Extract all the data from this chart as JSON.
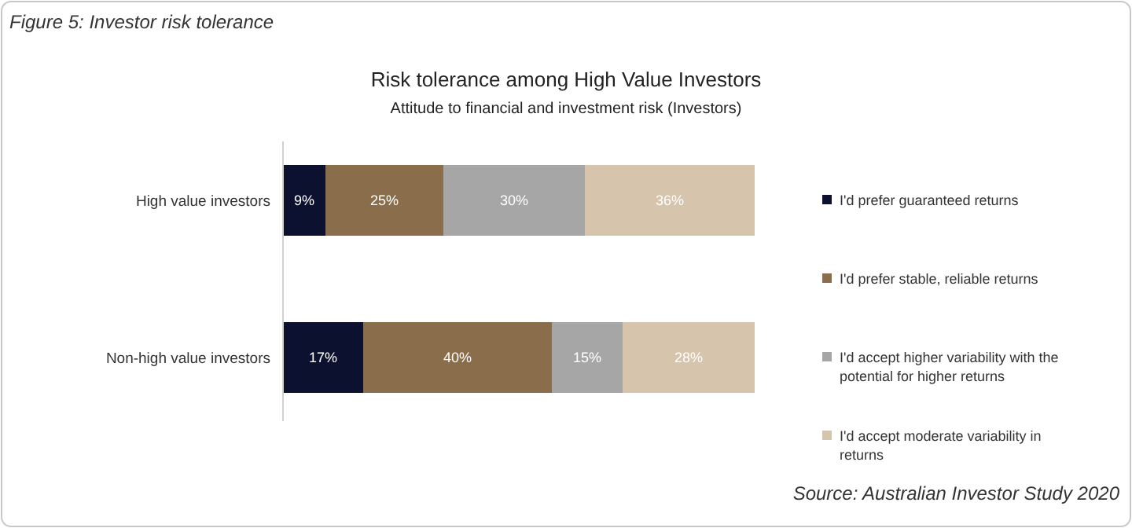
{
  "chart_data": {
    "type": "bar",
    "orientation": "horizontal",
    "stacked": true,
    "title": "Risk tolerance among High Value Investors",
    "subtitle": "Attitude to financial and investment risk (Investors)",
    "annotations": [
      "Figure 5: Investor risk tolerance",
      "Source: Australian Investor Study 2020"
    ],
    "categories": [
      "High value investors",
      "Non-high value investors"
    ],
    "series": [
      {
        "name": "I'd prefer guaranteed returns",
        "color": "#0d1130",
        "values": [
          9,
          17
        ],
        "value_labels": [
          "9%",
          "17%"
        ]
      },
      {
        "name": "I'd prefer stable, reliable returns",
        "color": "#8a6d4b",
        "values": [
          25,
          40
        ],
        "value_labels": [
          "25%",
          "40%"
        ]
      },
      {
        "name": "I'd accept higher variability with the potential for higher returns",
        "color": "#a6a6a6",
        "values": [
          30,
          15
        ],
        "value_labels": [
          "30%",
          "15%"
        ]
      },
      {
        "name": "I'd accept moderate variability in returns",
        "color": "#d6c4ad",
        "values": [
          36,
          28
        ],
        "value_labels": [
          "36%",
          "28%"
        ]
      }
    ],
    "xlim": [
      0,
      100
    ],
    "tick_labels": "y",
    "legend": "right"
  }
}
